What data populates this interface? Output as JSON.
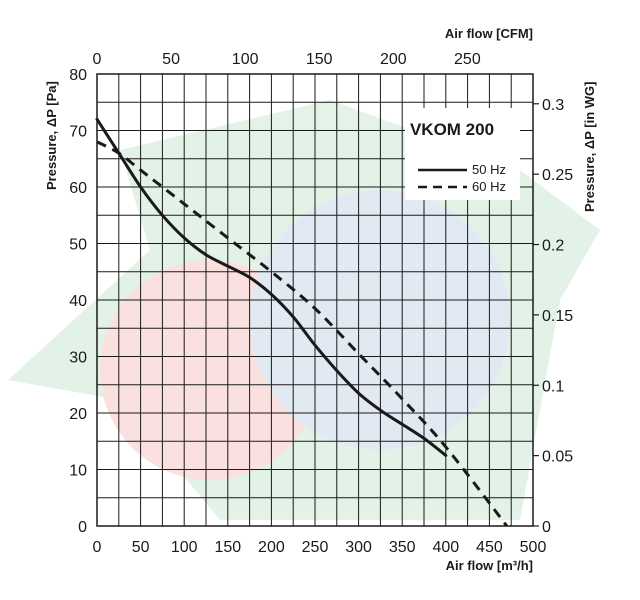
{
  "chart_data": {
    "type": "line",
    "title": "VKOM 200",
    "xlabel_bottom": "Air flow [m³/h]",
    "xlabel_top": "Air flow [CFM]",
    "ylabel_left": "Pressure, ΔP [Pa]",
    "ylabel_right": "Pressure, ΔP [in WG]",
    "xlim": [
      0,
      500
    ],
    "ylim": [
      0,
      80
    ],
    "x_ticks": [
      "0",
      "50",
      "100",
      "150",
      "200",
      "250",
      "300",
      "350",
      "400",
      "450",
      "500"
    ],
    "y_ticks": [
      "0",
      "10",
      "20",
      "30",
      "40",
      "50",
      "60",
      "70",
      "80"
    ],
    "top_ticks": [
      {
        "value": 0,
        "label": "0"
      },
      {
        "value": 50,
        "label": "50"
      },
      {
        "value": 100,
        "label": "100"
      },
      {
        "value": 150,
        "label": "150"
      },
      {
        "value": 200,
        "label": "200"
      },
      {
        "value": 250,
        "label": "250"
      }
    ],
    "right_ticks": [
      {
        "value": 0,
        "label": "0"
      },
      {
        "value": 0.05,
        "label": "0.05"
      },
      {
        "value": 0.1,
        "label": "0.1"
      },
      {
        "value": 0.15,
        "label": "0.15"
      },
      {
        "value": 0.2,
        "label": "0.2"
      },
      {
        "value": 0.25,
        "label": "0.25"
      },
      {
        "value": 0.3,
        "label": "0.3"
      }
    ],
    "grid": true,
    "legend_position": "top-right",
    "series": [
      {
        "name": "50 Hz",
        "style": "solid",
        "color": "#1a1a1a",
        "x": [
          0,
          25,
          50,
          75,
          100,
          125,
          150,
          175,
          200,
          225,
          250,
          275,
          300,
          325,
          350,
          375,
          400
        ],
        "y": [
          72,
          66,
          60,
          55,
          51,
          48,
          46,
          44,
          41,
          37,
          32,
          27.5,
          23.5,
          20.5,
          18,
          15.5,
          12.5
        ]
      },
      {
        "name": "60 Hz",
        "style": "dashed",
        "color": "#1a1a1a",
        "x": [
          0,
          25,
          50,
          100,
          150,
          200,
          250,
          300,
          350,
          400,
          470
        ],
        "y": [
          68,
          66,
          63,
          57,
          51,
          45,
          38.5,
          30.5,
          22.5,
          14,
          0
        ]
      }
    ]
  }
}
